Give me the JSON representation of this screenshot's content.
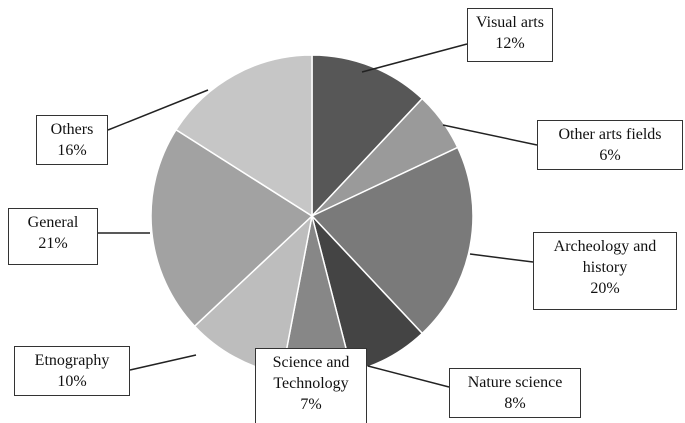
{
  "chart_data": {
    "type": "pie",
    "categories": [
      "Visual arts",
      "Other arts fields",
      "Archeology and history",
      "Nature science",
      "Science and Technology",
      "Etnography",
      "General",
      "Others"
    ],
    "values": [
      12,
      6,
      20,
      8,
      7,
      10,
      21,
      16
    ],
    "value_labels": [
      "12%",
      "6%",
      "20%",
      "8%",
      "7%",
      "10%",
      "21%",
      "16%"
    ],
    "colors": [
      "#575757",
      "#9a9a9a",
      "#7a7a7a",
      "#444444",
      "#878787",
      "#bdbdbd",
      "#a2a2a2",
      "#c6c6c6"
    ]
  }
}
